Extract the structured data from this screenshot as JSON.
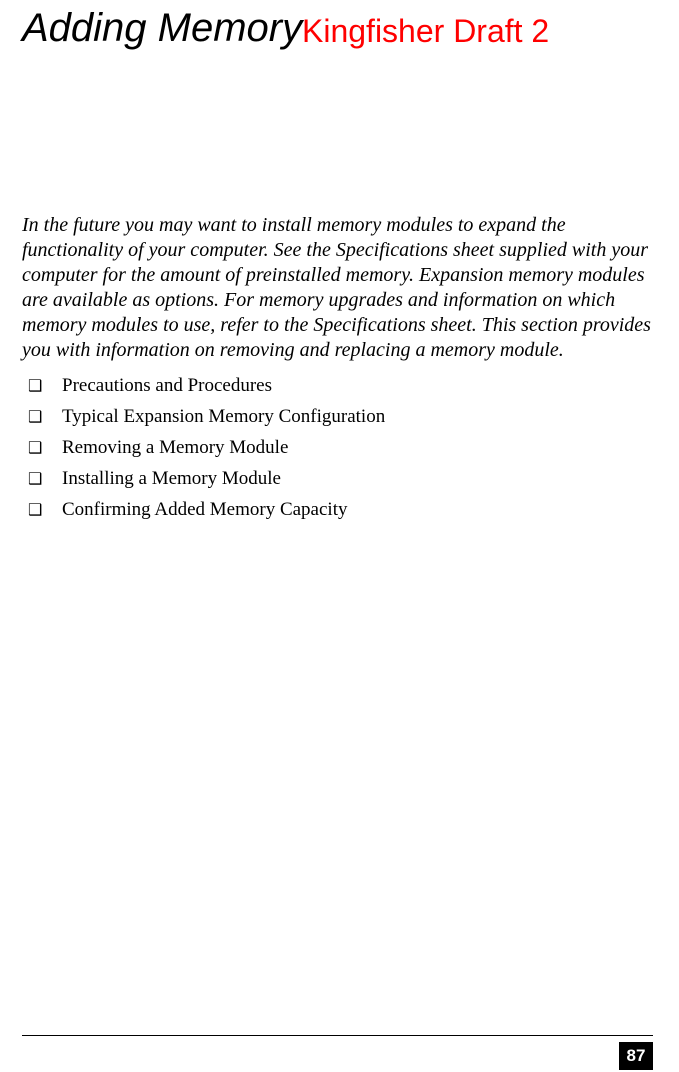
{
  "header": {
    "title": "Adding Memory",
    "draft_label": "Kingfisher Draft 2",
    "title_color": "#000000",
    "draft_color": "#ff0000"
  },
  "intro": {
    "text": "In the future you may want to install memory modules to expand the functionality of your computer. See the Specifications sheet supplied with your computer for the amount of preinstalled memory. Expansion memory modules are available as options. For memory upgrades and information on which memory modules to use, refer to the Specifications sheet. This section provides you with information on removing and replacing a memory module."
  },
  "bullet_glyph": "❑",
  "list_items": [
    "Precautions and Procedures",
    "Typical Expansion Memory Configuration",
    "Removing a Memory Module",
    "Installing a Memory Module",
    "Confirming Added Memory Capacity"
  ],
  "page_number": "87",
  "colors": {
    "background": "#ffffff",
    "text": "#000000",
    "footer_bg": "#000000",
    "footer_text": "#ffffff"
  }
}
